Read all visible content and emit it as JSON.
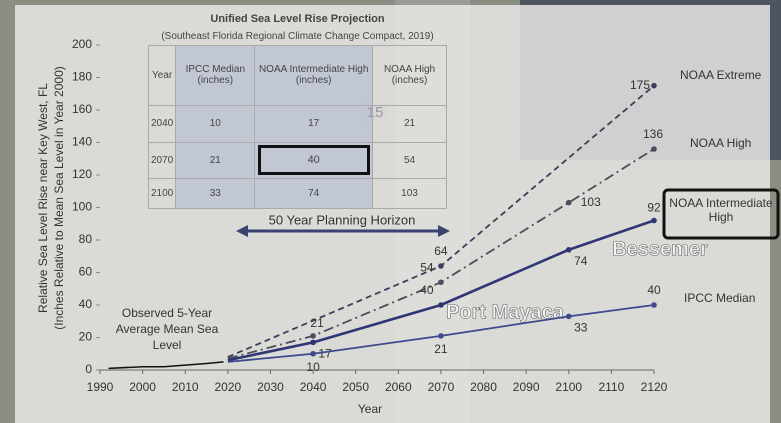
{
  "chart_data": {
    "type": "line",
    "x_label": "Year",
    "y_label_lines": [
      "Relative Sea Level Rise near Key West, FL",
      "(Inches Relative to Mean Sea Level in Year 2000)"
    ],
    "xlim": [
      1990,
      2120
    ],
    "xticks": [
      1990,
      2000,
      2010,
      2020,
      2030,
      2040,
      2050,
      2060,
      2070,
      2080,
      2090,
      2100,
      2110,
      2120
    ],
    "ylim": [
      0,
      200
    ],
    "yticks": [
      0,
      20,
      40,
      60,
      80,
      100,
      120,
      140,
      160,
      180,
      200
    ],
    "grid": false,
    "series": [
      {
        "name": "NOAA Extreme",
        "color": "#3b3f58",
        "style": "dashed",
        "x": [
          2020,
          2070,
          2120
        ],
        "values": [
          8,
          64,
          175
        ],
        "value_labels": [
          null,
          "64",
          "175"
        ]
      },
      {
        "name": "NOAA High",
        "color": "#4a4d5c",
        "style": "dashdot",
        "x": [
          2020,
          2040,
          2070,
          2100,
          2120
        ],
        "values": [
          7,
          21,
          54,
          103,
          136
        ],
        "value_labels": [
          null,
          "21",
          "54",
          "103",
          "136"
        ]
      },
      {
        "name": "NOAA Intermediate High",
        "color": "#2f3676",
        "style": "solid",
        "x": [
          2020,
          2040,
          2070,
          2100,
          2120
        ],
        "values": [
          6,
          17,
          40,
          74,
          92
        ],
        "value_labels": [
          null,
          "17",
          "40",
          "74",
          "92"
        ]
      },
      {
        "name": "IPCC Median",
        "color": "#3d4a8c",
        "style": "solid",
        "x": [
          2020,
          2040,
          2070,
          2100,
          2120
        ],
        "values": [
          5,
          10,
          21,
          33,
          40
        ],
        "value_labels": [
          null,
          "10",
          "21",
          "33",
          "40"
        ]
      },
      {
        "name": "Observed 5-Year Average Mean Sea Level",
        "color": "#111111",
        "style": "solid",
        "x": [
          1992,
          2000,
          2005,
          2010,
          2015,
          2019
        ],
        "values": [
          1,
          2,
          2,
          3,
          4,
          5
        ]
      }
    ],
    "annotations": [
      "50 Year Planning Horizon"
    ]
  },
  "map_labels": [
    "Bessemer",
    "Port Mayaca",
    "15"
  ],
  "table": {
    "title": "Unified Sea Level Rise Projection",
    "subtitle": "(Southeast Florida Regional Climate Change Compact, 2019)",
    "header": [
      "Year",
      "IPCC Median (inches)",
      "NOAA Intermediate High (inches)",
      "NOAA High (inches)"
    ],
    "rows": [
      [
        "2040",
        "10",
        "17",
        "21"
      ],
      [
        "2070",
        "21",
        "40",
        "54"
      ],
      [
        "2100",
        "33",
        "74",
        "103"
      ]
    ]
  }
}
